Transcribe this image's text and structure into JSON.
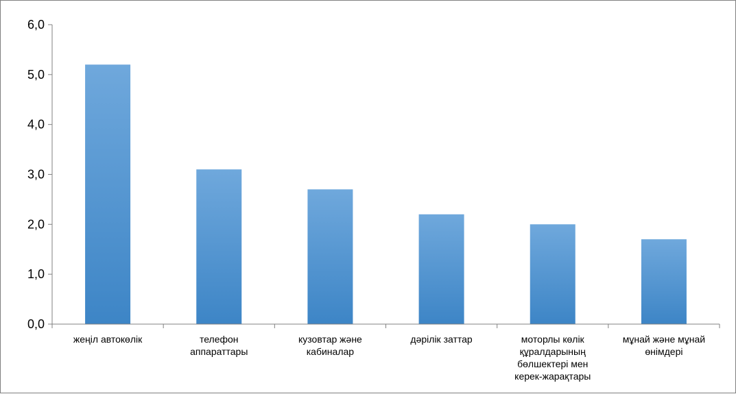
{
  "chart_data": {
    "type": "bar",
    "title": "",
    "xlabel": "",
    "ylabel": "",
    "categories": [
      [
        "жеңіл автокөлік"
      ],
      [
        "телефон",
        "аппараттары"
      ],
      [
        "кузовтар және",
        "кабиналар"
      ],
      [
        "дәрілік заттар"
      ],
      [
        "моторлы көлік",
        "құралдарының",
        "бөлшектері мен",
        "керек-жарақтары"
      ],
      [
        "мұнай және мұнай",
        "өнімдері"
      ]
    ],
    "values": [
      5.2,
      3.1,
      2.7,
      2.2,
      2.0,
      1.7
    ],
    "ylim": [
      0,
      6
    ],
    "yticks": [
      "0,0",
      "1,0",
      "2,0",
      "3,0",
      "4,0",
      "5,0",
      "6,0"
    ],
    "grid": false,
    "legend": "none",
    "colors": {
      "bar_top": "#6fa8dc",
      "bar_bottom": "#3d85c6",
      "axis": "#808080"
    }
  }
}
